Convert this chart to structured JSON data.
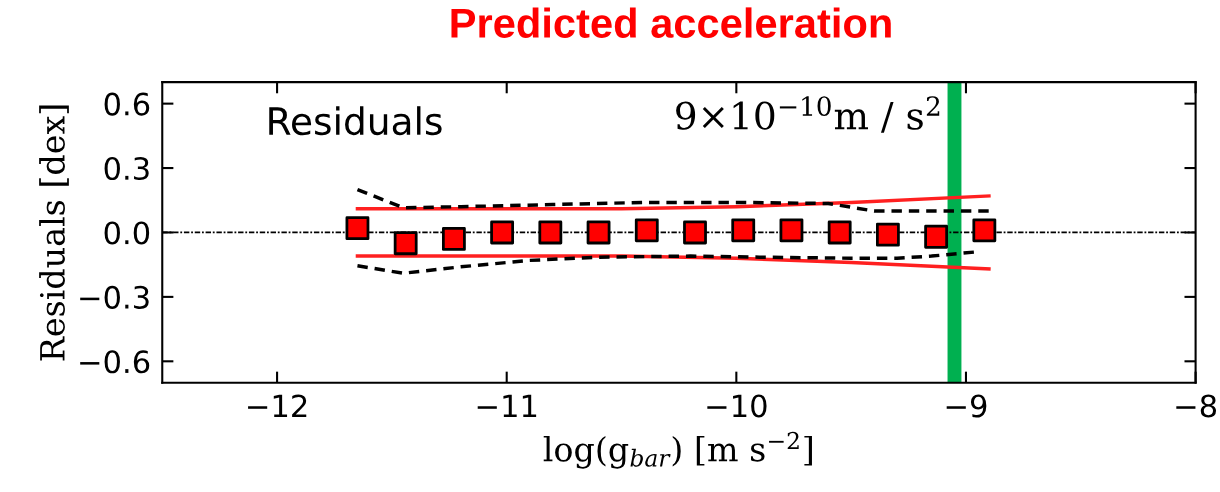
{
  "chart_data": {
    "type": "scatter",
    "title": "Predicted acceleration",
    "xlabel": "log(g$_{bar}$) [m s$^{−2}$]",
    "ylabel": "Residuals [dex]",
    "annotations": [
      "Residuals"
    ],
    "xlim": [
      -12.5,
      -8
    ],
    "ylim": [
      -0.7,
      0.7
    ],
    "xticks": [
      {
        "value": -12,
        "label": "−12"
      },
      {
        "value": -11,
        "label": "−11"
      },
      {
        "value": -10,
        "label": "−10"
      },
      {
        "value": -9,
        "label": "−9"
      },
      {
        "value": -8,
        "label": "−8"
      }
    ],
    "yticks": [
      {
        "value": -0.6,
        "label": "−0.6"
      },
      {
        "value": -0.3,
        "label": "−0.3"
      },
      {
        "value": 0.0,
        "label": "0.0"
      },
      {
        "value": 0.3,
        "label": "0.3"
      },
      {
        "value": 0.6,
        "label": "0.6"
      }
    ],
    "grid": false,
    "legend": false,
    "ref_lines": [
      {
        "axis": "y",
        "value": 0,
        "color": "#000000",
        "line_style": "dotted"
      },
      {
        "axis": "x",
        "value": -9.05,
        "label": "9×10$^{−10}$m / s$^{2}$",
        "color": "#00b050",
        "line_style": "solid"
      }
    ],
    "series": [
      {
        "type": "line",
        "color": "#ff2020",
        "line_style": "solid",
        "marker": "none",
        "x": [
          -11.65,
          -10.5,
          -10.0,
          -9.5,
          -8.9
        ],
        "values": [
          0.11,
          0.11,
          0.12,
          0.14,
          0.17
        ]
      },
      {
        "type": "line",
        "color": "#ff2020",
        "line_style": "solid",
        "marker": "none",
        "x": [
          -11.65,
          -10.5,
          -10.0,
          -9.5,
          -8.9
        ],
        "values": [
          -0.11,
          -0.11,
          -0.12,
          -0.14,
          -0.17
        ]
      },
      {
        "type": "line",
        "color": "#000000",
        "line_style": "dashed",
        "marker": "none",
        "x": [
          -11.65,
          -11.45,
          -11.2,
          -10.8,
          -10.4,
          -10.0,
          -9.6,
          -9.4,
          -8.9
        ],
        "values": [
          0.2,
          0.115,
          0.12,
          0.13,
          0.14,
          0.14,
          0.135,
          0.1,
          0.1
        ]
      },
      {
        "type": "line",
        "color": "#000000",
        "line_style": "dashed",
        "marker": "none",
        "x": [
          -11.65,
          -11.45,
          -11.2,
          -10.9,
          -10.6,
          -10.2,
          -9.9,
          -9.5,
          -9.3,
          -9.15,
          -8.95
        ],
        "values": [
          -0.155,
          -0.19,
          -0.16,
          -0.13,
          -0.115,
          -0.11,
          -0.115,
          -0.12,
          -0.12,
          -0.11,
          -0.09
        ]
      },
      {
        "color": "#ff0000",
        "marker": "square",
        "x": [
          -11.65,
          -11.44,
          -11.23,
          -11.02,
          -10.81,
          -10.6,
          -10.39,
          -10.18,
          -9.97,
          -9.76,
          -9.55,
          -9.34,
          -9.13,
          -8.92
        ],
        "values": [
          0.02,
          -0.05,
          -0.03,
          0.0,
          0.0,
          0.0,
          0.01,
          0.0,
          0.01,
          0.01,
          0.0,
          -0.01,
          -0.02,
          0.01
        ]
      }
    ]
  }
}
